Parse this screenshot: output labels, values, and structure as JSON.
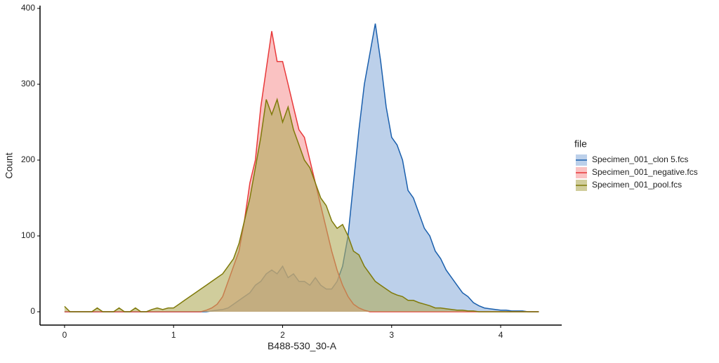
{
  "chart_data": {
    "type": "area",
    "x_label": "B488-530_30-A",
    "y_label": "Count",
    "legend_title": "file",
    "legend_position": "right",
    "x": [
      0,
      0.05,
      0.1,
      0.15,
      0.2,
      0.25,
      0.3,
      0.35,
      0.4,
      0.45,
      0.5,
      0.55,
      0.6,
      0.65,
      0.7,
      0.75,
      0.8,
      0.85,
      0.9,
      0.95,
      1,
      1.05,
      1.1,
      1.15,
      1.2,
      1.25,
      1.3,
      1.35,
      1.4,
      1.45,
      1.5,
      1.55,
      1.6,
      1.65,
      1.7,
      1.75,
      1.8,
      1.85,
      1.9,
      1.95,
      2,
      2.05,
      2.1,
      2.15,
      2.2,
      2.25,
      2.3,
      2.35,
      2.4,
      2.45,
      2.5,
      2.55,
      2.6,
      2.65,
      2.7,
      2.75,
      2.8,
      2.85,
      2.9,
      2.95,
      3,
      3.05,
      3.1,
      3.15,
      3.2,
      3.25,
      3.3,
      3.35,
      3.4,
      3.45,
      3.5,
      3.55,
      3.6,
      3.65,
      3.7,
      3.75,
      3.8,
      3.85,
      3.9,
      3.95,
      4,
      4.05,
      4.1,
      4.15,
      4.2,
      4.25,
      4.3,
      4.35
    ],
    "series": [
      {
        "name": "Specimen_001_clon 5.fcs",
        "color": "#1a5fad",
        "fill": "#8fb0dc",
        "values": [
          0,
          0,
          0,
          0,
          0,
          0,
          0,
          0,
          0,
          0,
          0,
          0,
          0,
          0,
          0,
          0,
          0,
          0,
          0,
          0,
          0,
          0,
          0,
          0,
          0,
          0,
          0,
          1,
          2,
          3,
          5,
          10,
          15,
          20,
          25,
          35,
          40,
          50,
          55,
          50,
          60,
          45,
          50,
          40,
          40,
          35,
          45,
          35,
          30,
          30,
          40,
          60,
          100,
          170,
          240,
          300,
          340,
          380,
          330,
          270,
          230,
          220,
          200,
          160,
          150,
          130,
          110,
          100,
          80,
          70,
          55,
          45,
          35,
          25,
          20,
          12,
          8,
          5,
          4,
          3,
          2,
          2,
          1,
          1,
          1,
          0,
          0,
          0
        ]
      },
      {
        "name": "Specimen_001_negative.fcs",
        "color": "#e8393a",
        "fill": "#f79a9a",
        "values": [
          0,
          0,
          0,
          0,
          0,
          0,
          0,
          0,
          0,
          0,
          0,
          0,
          0,
          0,
          0,
          0,
          0,
          0,
          0,
          0,
          0,
          0,
          0,
          0,
          0,
          0,
          2,
          5,
          10,
          20,
          40,
          60,
          80,
          120,
          170,
          200,
          270,
          320,
          370,
          330,
          330,
          300,
          270,
          240,
          230,
          200,
          170,
          140,
          110,
          80,
          55,
          35,
          20,
          10,
          5,
          2,
          0,
          0,
          0,
          0,
          0,
          0,
          0,
          0,
          0,
          0,
          0,
          0,
          0,
          0,
          0,
          0,
          0,
          0,
          0,
          0,
          0,
          0,
          0,
          0,
          0,
          0,
          0,
          0,
          0,
          0,
          0,
          0
        ]
      },
      {
        "name": "Specimen_001_pool.fcs",
        "color": "#7f7a0a",
        "fill": "#b0ac5a",
        "values": [
          7,
          0,
          0,
          0,
          0,
          0,
          5,
          0,
          0,
          0,
          5,
          0,
          0,
          5,
          0,
          0,
          3,
          5,
          3,
          5,
          5,
          10,
          15,
          20,
          25,
          30,
          35,
          40,
          45,
          50,
          60,
          70,
          90,
          120,
          150,
          190,
          230,
          280,
          260,
          280,
          250,
          270,
          240,
          220,
          200,
          190,
          170,
          150,
          140,
          120,
          110,
          115,
          100,
          80,
          75,
          60,
          50,
          40,
          35,
          30,
          25,
          22,
          20,
          15,
          15,
          12,
          10,
          8,
          5,
          5,
          4,
          3,
          2,
          2,
          1,
          1,
          0,
          0,
          0,
          0,
          0,
          0,
          0,
          0,
          0,
          0,
          0,
          0
        ]
      }
    ],
    "xlim": [
      -0.225,
      4.56
    ],
    "xticks": [
      0,
      1,
      2,
      3,
      4
    ],
    "ylim": [
      -17.6,
      403.7
    ],
    "yticks": [
      0,
      100,
      200,
      300,
      400
    ],
    "grid": false
  }
}
